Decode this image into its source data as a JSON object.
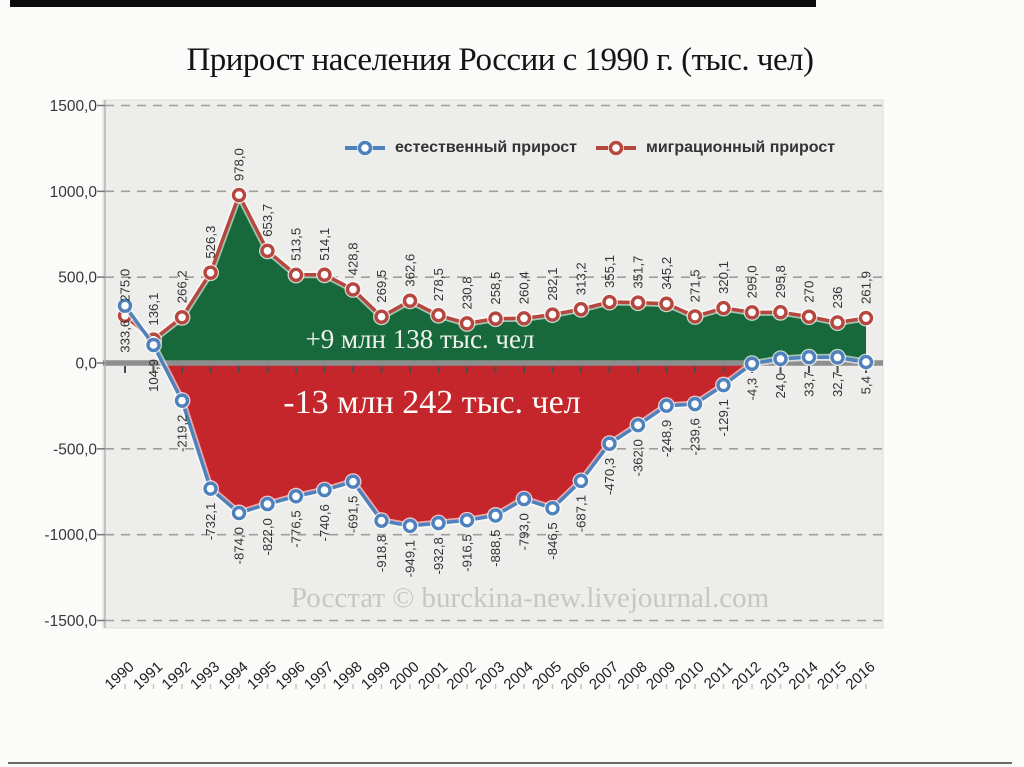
{
  "title": "Прирост населения России с 1990 г. (тыс. чел)",
  "watermark": "Росстат © burckina-new.livejournal.com",
  "chart_data": {
    "type": "line",
    "title": "Прирост населения России с 1990 г. (тыс. чел)",
    "x": [
      "1990",
      "1991",
      "1992",
      "1993",
      "1994",
      "1995",
      "1996",
      "1997",
      "1998",
      "1999",
      "2000",
      "2001",
      "2002",
      "2003",
      "2004",
      "2005",
      "2006",
      "2007",
      "2008",
      "2009",
      "2010",
      "2011",
      "2012",
      "2013",
      "2014",
      "2015",
      "2016"
    ],
    "series": [
      {
        "name": "естественный прирост",
        "color": "#4f81bd",
        "fill_color": "#c5262c",
        "values": [
          333.6,
          104.9,
          -219.2,
          -732.1,
          -874.0,
          -822.0,
          -776.5,
          -740.6,
          -691.5,
          -918.8,
          -949.1,
          -932.8,
          -916.5,
          -888.5,
          -793.0,
          -846.5,
          -687.1,
          -470.3,
          -362.0,
          -248.9,
          -239.6,
          -129.1,
          -4.3,
          24.0,
          33.7,
          32.7,
          5.4
        ],
        "labels": [
          "333,6",
          "104,9",
          "-219,2",
          "-732,1",
          "-874,0",
          "-822,0",
          "-776,5",
          "-740,6",
          "-691,5",
          "-918,8",
          "-949,1",
          "-932,8",
          "-916,5",
          "-888,5",
          "-793,0",
          "-846,5",
          "-687,1",
          "-470,3",
          "-362,0",
          "-248,9",
          "-239,6",
          "-129,1",
          "-4,3",
          "24,0",
          "33,7",
          "32,7",
          "5,4"
        ]
      },
      {
        "name": "миграционный прирост",
        "color": "#b5473f",
        "fill_color": "#17683b",
        "values": [
          275.0,
          136.1,
          266.2,
          526.3,
          978.0,
          653.7,
          513.5,
          514.1,
          428.8,
          269.5,
          362.6,
          278.5,
          230.8,
          258.5,
          260.4,
          282.1,
          313.2,
          355.1,
          351.7,
          345.2,
          271.5,
          320.1,
          295.0,
          295.8,
          270,
          236,
          261.9
        ],
        "labels": [
          "275,0",
          "136,1",
          "266,2",
          "526,3",
          "978,0",
          "653,7",
          "513,5",
          "514,1",
          "428,8",
          "269,5",
          "362,6",
          "278,5",
          "230,8",
          "258,5",
          "260,4",
          "282,1",
          "313,2",
          "355,1",
          "351,7",
          "345,2",
          "271,5",
          "320,1",
          "295,0",
          "295,8",
          "270",
          "236",
          "261,9"
        ]
      }
    ],
    "ylim": [
      -1500,
      1500
    ],
    "yticks": [
      {
        "v": 1500,
        "label": "1500,0"
      },
      {
        "v": 1000,
        "label": "1000,0"
      },
      {
        "v": 500,
        "label": "500,0"
      },
      {
        "v": 0,
        "label": "0,0"
      },
      {
        "v": -500,
        "label": "-500,0"
      },
      {
        "v": -1000,
        "label": "-1000,0"
      },
      {
        "v": -1500,
        "label": "-1500,0"
      }
    ],
    "grid": "dashed horizontal",
    "legend_position": "top",
    "annotations": {
      "green": "+9 млн 138 тыс. чел",
      "red": "-13 млн 242 тыс. чел"
    }
  }
}
